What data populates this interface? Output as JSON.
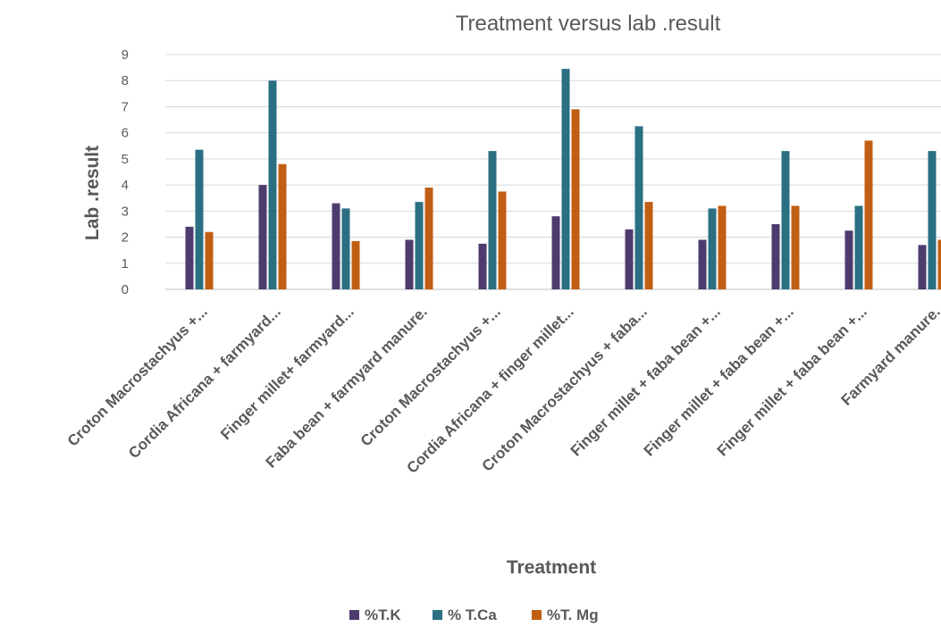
{
  "chart_data": {
    "type": "bar",
    "title": "Treatment versus lab .result",
    "xlabel": "Treatment",
    "ylabel": "Lab .result",
    "ylim": [
      0,
      9
    ],
    "yticks": [
      0,
      1,
      2,
      3,
      4,
      5,
      6,
      7,
      8,
      9
    ],
    "grid": true,
    "legend_position": "bottom",
    "categories": [
      "Croton Macrostachyus +...",
      "Cordia Africana + farmyard...",
      "Finger millet+ farmyard...",
      "Faba bean + farmyard manure.",
      "Croton Macrostachyus +...",
      "Cordia Africana + finger millet...",
      "Croton Macrostachyus + faba...",
      "Finger millet + faba bean +...",
      "Finger millet + faba bean +...",
      "Finger millet + faba bean +...",
      "Farmyard manure."
    ],
    "series": [
      {
        "name": "%T.K",
        "color": "#4e3b6e",
        "values": [
          2.4,
          4.0,
          3.3,
          1.9,
          1.75,
          2.8,
          2.3,
          1.9,
          2.5,
          2.25,
          1.7
        ]
      },
      {
        "name": "% T.Ca",
        "color": "#2b6f83",
        "values": [
          5.35,
          8.0,
          3.1,
          3.35,
          5.3,
          8.45,
          6.25,
          3.1,
          5.3,
          3.2,
          5.3
        ]
      },
      {
        "name": "%T. Mg",
        "color": "#c05f14",
        "values": [
          2.2,
          4.8,
          1.85,
          3.9,
          3.75,
          6.9,
          3.35,
          3.2,
          3.2,
          5.7,
          1.9
        ]
      }
    ]
  }
}
